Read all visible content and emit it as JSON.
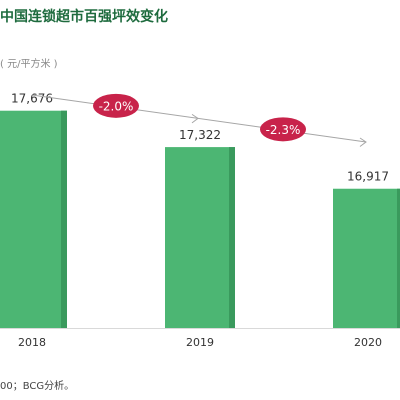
{
  "header": {
    "title": "中国连锁超市百强坪效变化",
    "unit": "( 元/平方米 )"
  },
  "footer": {
    "source": "00；BCG分析。"
  },
  "colors": {
    "bar": "#4cb673",
    "bar_side": "#3a9a5d",
    "arrow": "#a6a6a6",
    "badge": "#c8234a",
    "axis": "#d9d9d9"
  },
  "chart_data": {
    "type": "bar",
    "categories": [
      "2018",
      "2019",
      "2020"
    ],
    "values": [
      17676,
      17322,
      16917
    ],
    "value_labels": [
      "17,676",
      "17,322",
      "16,917"
    ],
    "title": "中国连锁超市百强坪效变化",
    "ylabel": "( 元/平方米 )",
    "xlabel": "",
    "annotations": [
      {
        "text": "-2.0%",
        "from": "2018",
        "to": "2019"
      },
      {
        "text": "-2.3%",
        "from": "2019",
        "to": "2020"
      }
    ]
  }
}
